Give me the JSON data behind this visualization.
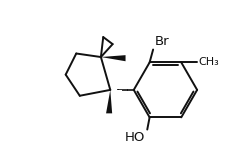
{
  "bg_color": "#ffffff",
  "lc": "#111111",
  "lw": 1.4,
  "fs": 8.5,
  "figsize": [
    2.37,
    1.61
  ],
  "dpi": 100,
  "xlim": [
    -0.5,
    9.5
  ],
  "ylim": [
    0.2,
    7.0
  ]
}
